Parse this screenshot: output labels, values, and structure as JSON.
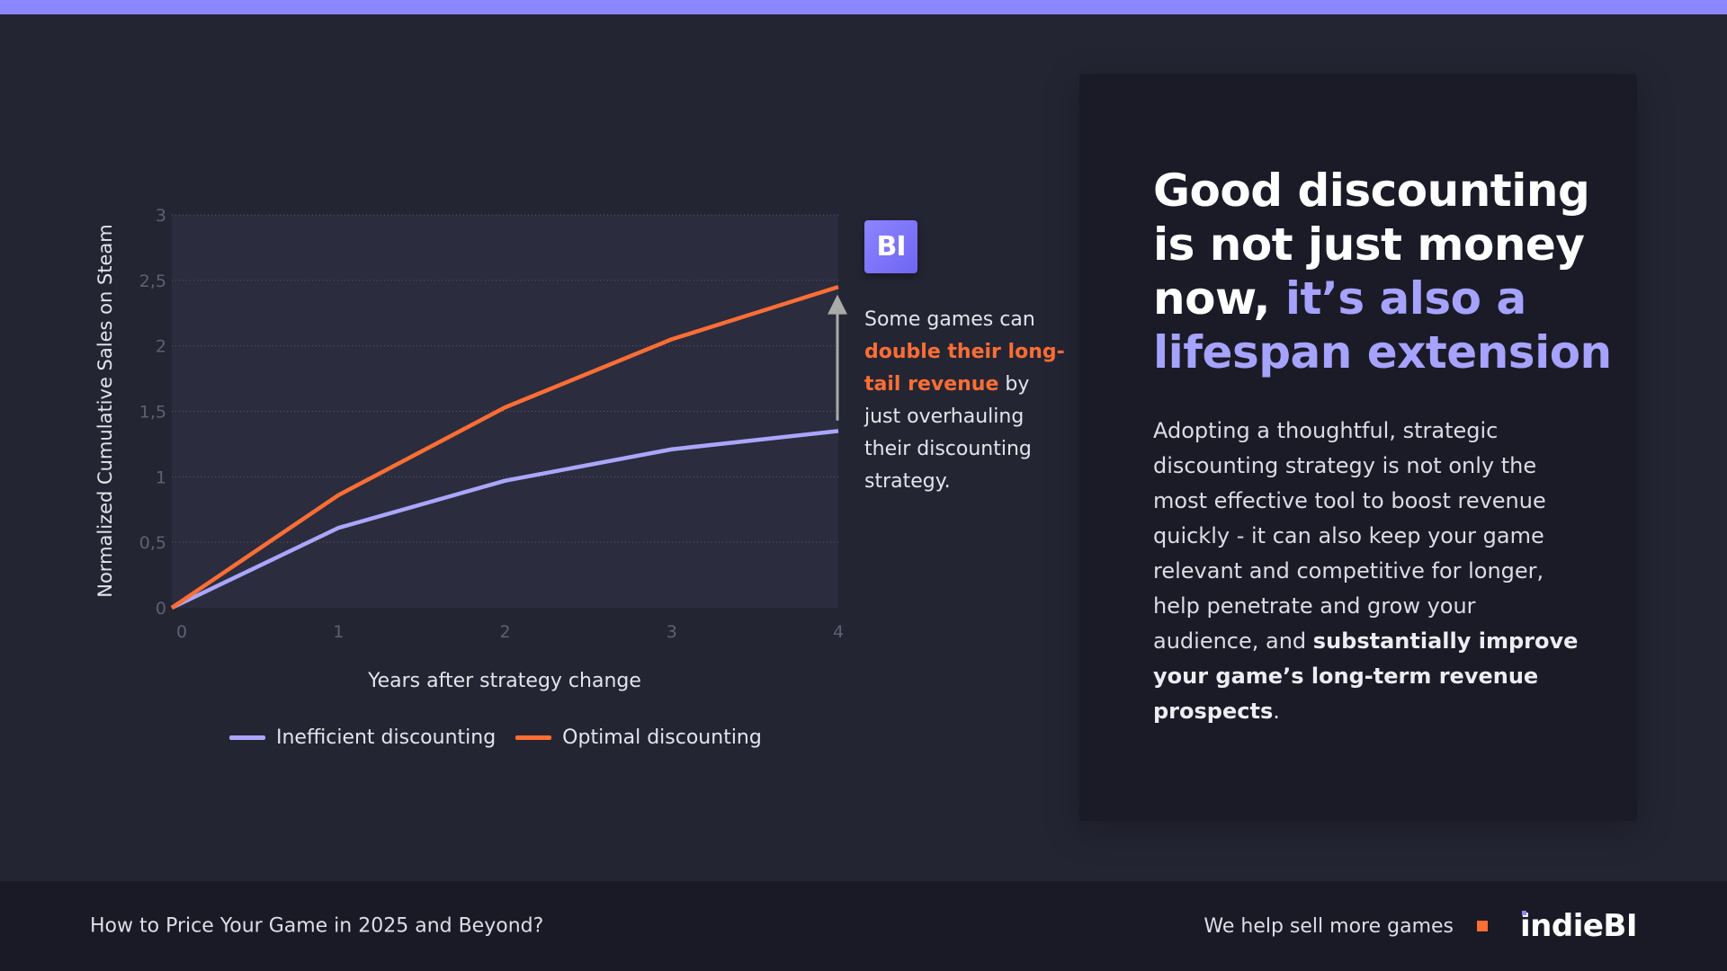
{
  "colors": {
    "accent_purple": "#8b88ff",
    "light_purple": "#a6a2ff",
    "orange": "#ff6e35",
    "background": "#242533",
    "panel": "#1a1b27",
    "footer": "#191a26",
    "plot_bg": "#2b2c3d"
  },
  "chart_data": {
    "type": "line",
    "title": "",
    "xlabel": "Years after strategy change",
    "ylabel": "Normalized Cumulative Sales on Steam",
    "x": [
      0,
      1,
      2,
      3,
      4
    ],
    "x_ticks": [
      "0",
      "1",
      "2",
      "3",
      "4"
    ],
    "y_ticks": [
      "0",
      "0,5",
      "1",
      "1,5",
      "2",
      "2,5",
      "3"
    ],
    "ylim": [
      0,
      3
    ],
    "xlim": [
      0,
      4
    ],
    "grid": "horizontal dotted",
    "legend_position": "bottom",
    "series": [
      {
        "name": "Inefficient discounting",
        "color": "#aaa6ff",
        "values": [
          0,
          0.61,
          0.97,
          1.21,
          1.35
        ]
      },
      {
        "name": "Optimal discounting",
        "color": "#ff6e35",
        "values": [
          0,
          0.86,
          1.53,
          2.05,
          2.45
        ]
      }
    ],
    "annotations": [
      {
        "type": "arrow",
        "x": 4,
        "from": 1.43,
        "to": 2.35,
        "color": "#aaaaaa"
      }
    ]
  },
  "chart": {
    "y_label": "Normalized Cumulative Sales on Steam",
    "x_label": "Years after strategy change",
    "legend": [
      {
        "label": "Inefficient discounting",
        "color": "#aaa6ff"
      },
      {
        "label": "Optimal discounting",
        "color": "#ff6e35"
      }
    ]
  },
  "annotation": {
    "badge_text": "BI",
    "text_before": "Some games can ",
    "highlight": "double their long-tail revenue",
    "text_after": " by just overhauling their discounting strategy."
  },
  "panel": {
    "headline_white": "Good discounting is not just money now, ",
    "headline_accent": "it’s also a lifespan extension",
    "body_regular": "Adopting a thoughtful, strategic discounting strategy is not only the most effective tool to boost revenue quickly - it can also keep your game relevant and competitive for longer, help penetrate and grow your audience, and ",
    "body_bold": "substantially improve your game’s long-term revenue prospects",
    "body_end": "."
  },
  "footer": {
    "title": "How to Price Your Game in 2025 and Beyond?",
    "tagline": "We help sell more games",
    "logo": "indieBI"
  }
}
